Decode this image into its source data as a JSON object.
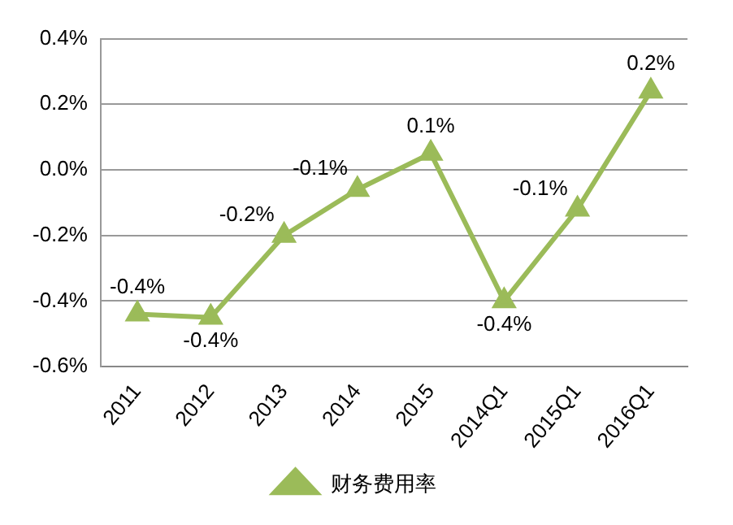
{
  "chart_data": {
    "type": "line",
    "categories": [
      "2011",
      "2012",
      "2013",
      "2014",
      "2015",
      "2014Q1",
      "2015Q1",
      "2016Q1"
    ],
    "series": [
      {
        "name": "财务费用率",
        "color": "#9bbb59",
        "values": [
          -0.44,
          -0.45,
          -0.2,
          -0.06,
          0.05,
          -0.4,
          -0.12,
          0.24
        ],
        "value_labels": [
          "-0.4%",
          "-0.4%",
          "-0.2%",
          "-0.1%",
          "0.1%",
          "-0.4%",
          "-0.1%",
          "0.2%"
        ]
      }
    ],
    "ylim": [
      -0.6,
      0.4
    ],
    "yticks": [
      {
        "value": -0.6,
        "label": "-0.6%"
      },
      {
        "value": -0.4,
        "label": "-0.4%"
      },
      {
        "value": -0.2,
        "label": "-0.2%"
      },
      {
        "value": 0,
        "label": "0.0%"
      },
      {
        "value": 0.2,
        "label": "0.2%"
      },
      {
        "value": 0.4,
        "label": "0.4%"
      }
    ],
    "grid": "y",
    "legend": "bottom",
    "marker": "triangle",
    "line_style": "solid"
  }
}
